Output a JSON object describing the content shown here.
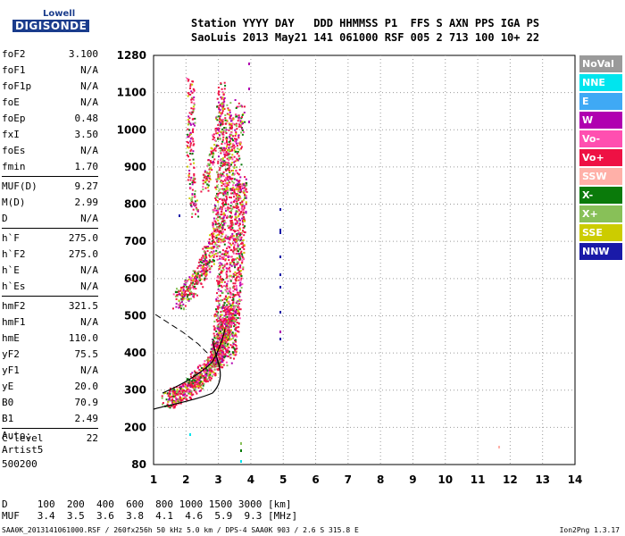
{
  "logo": {
    "line1": "Lowell",
    "line2": "DIGISONDE"
  },
  "header": {
    "labels": "Station YYYY DAY   DDD HHMMSS P1  FFS S AXN PPS IGA PS",
    "values": "SaoLuis 2013 May21 141 061000 RSF 005 2 713 100 10+ 22"
  },
  "params": [
    {
      "name": "foF2",
      "value": "3.100"
    },
    {
      "name": "foF1",
      "value": "N/A"
    },
    {
      "name": "foF1p",
      "value": "N/A"
    },
    {
      "name": "foE",
      "value": "N/A"
    },
    {
      "name": "foEp",
      "value": "0.48"
    },
    {
      "name": "fxI",
      "value": "3.50"
    },
    {
      "name": "foEs",
      "value": "N/A"
    },
    {
      "name": "fmin",
      "value": "1.70"
    },
    {
      "name": "MUF(D)",
      "value": "9.27"
    },
    {
      "name": "M(D)",
      "value": "2.99"
    },
    {
      "name": "D",
      "value": "N/A"
    },
    {
      "name": "h`F",
      "value": "275.0"
    },
    {
      "name": "h`F2",
      "value": "275.0"
    },
    {
      "name": "h`E",
      "value": "N/A"
    },
    {
      "name": "h`Es",
      "value": "N/A"
    },
    {
      "name": "hmF2",
      "value": "321.5"
    },
    {
      "name": "hmF1",
      "value": "N/A"
    },
    {
      "name": "hmE",
      "value": "110.0"
    },
    {
      "name": "yF2",
      "value": "75.5"
    },
    {
      "name": "yF1",
      "value": "N/A"
    },
    {
      "name": "yE",
      "value": "20.0"
    },
    {
      "name": "B0",
      "value": "70.9"
    },
    {
      "name": "B1",
      "value": "2.49"
    },
    {
      "name": "C-level",
      "value": "22"
    }
  ],
  "auto": {
    "line1": "Auto:",
    "line2": "Artist5",
    "line3": "500200"
  },
  "legend": [
    {
      "label": "NoVal",
      "color": "#9a9a9a"
    },
    {
      "label": "NNE",
      "color": "#00e5ee"
    },
    {
      "label": "E",
      "color": "#3fa9f5"
    },
    {
      "label": "W",
      "color": "#b000b0"
    },
    {
      "label": "Vo-",
      "color": "#ff4fb0"
    },
    {
      "label": "Vo+",
      "color": "#ee1144"
    },
    {
      "label": "SSW",
      "color": "#ffb0a8"
    },
    {
      "label": "X-",
      "color": "#0a7a0a"
    },
    {
      "label": "X+",
      "color": "#88c058"
    },
    {
      "label": "SSE",
      "color": "#cccc00"
    },
    {
      "label": "NNW",
      "color": "#1a1aa8"
    }
  ],
  "axes": {
    "x_ticks": [
      "1",
      "2",
      "3",
      "4",
      "5",
      "6",
      "7",
      "8",
      "9",
      "10",
      "11",
      "12",
      "13",
      "14"
    ],
    "y_ticks": [
      "80",
      "200",
      "300",
      "400",
      "500",
      "600",
      "700",
      "800",
      "900",
      "1000",
      "1100",
      "1280"
    ]
  },
  "bottom": {
    "line1": "D     100  200  400  600  800 1000 1500 3000 [km]",
    "line2": "MUF   3.4  3.5  3.6  3.8  4.1  4.6  5.9  9.3 [MHz]"
  },
  "footer": "SAA0K_2013141061000.RSF / 260fx256h 50 kHz 5.0 km / DPS-4 SAA0K 903 / 2.6 S 315.8 E",
  "version": "Ion2Png 1.3.17"
}
